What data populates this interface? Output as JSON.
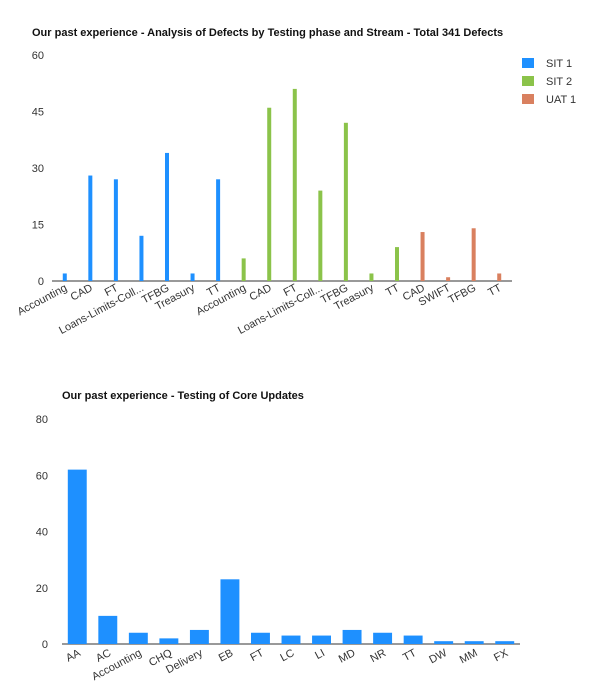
{
  "chart_data": [
    {
      "type": "bar",
      "title": "Our past experience - Analysis of Defects by Testing phase and Stream - Total 341 Defects",
      "xlabel": "",
      "ylabel": "",
      "ylim": [
        0,
        60
      ],
      "yticks": [
        "60",
        "45",
        "30",
        "15",
        "0"
      ],
      "grid": false,
      "legend_position": "top-right",
      "series_colors": {
        "SIT 1": "#1e90ff",
        "SIT 2": "#8bc34a",
        "UAT 1": "#d9805f"
      },
      "legend": [
        {
          "name": "SIT 1",
          "color": "#1e90ff"
        },
        {
          "name": "SIT 2",
          "color": "#8bc34a"
        },
        {
          "name": "UAT 1",
          "color": "#d9805f"
        }
      ],
      "categories": [
        "Accounting",
        "CAD",
        "FT",
        "Loans-Limits-Coll...",
        "TFBG",
        "Treasury",
        "TT",
        "Accounting",
        "CAD",
        "FT",
        "Loans-Limits-Coll...",
        "TFBG",
        "Treasury",
        "TT",
        "CAD",
        "SWIFT",
        "TFBG",
        "TT"
      ],
      "series_of_category": [
        "SIT 1",
        "SIT 1",
        "SIT 1",
        "SIT 1",
        "SIT 1",
        "SIT 1",
        "SIT 1",
        "SIT 2",
        "SIT 2",
        "SIT 2",
        "SIT 2",
        "SIT 2",
        "SIT 2",
        "SIT 2",
        "UAT 1",
        "UAT 1",
        "UAT 1",
        "UAT 1"
      ],
      "values": [
        2,
        28,
        27,
        12,
        34,
        2,
        27,
        6,
        46,
        51,
        24,
        42,
        2,
        9,
        13,
        1,
        14,
        2
      ]
    },
    {
      "type": "bar",
      "title": "Our past experience - Testing of Core Updates",
      "xlabel": "",
      "ylabel": "",
      "ylim": [
        0,
        80
      ],
      "yticks": [
        "80",
        "60",
        "40",
        "20",
        "0"
      ],
      "grid": false,
      "color": "#1e90ff",
      "categories": [
        "AA",
        "AC",
        "Accounting",
        "CHQ",
        "Delivery",
        "EB",
        "FT",
        "LC",
        "LI",
        "MD",
        "NR",
        "TT",
        "DW",
        "MM",
        "FX"
      ],
      "values": [
        62,
        10,
        4,
        2,
        5,
        23,
        4,
        3,
        3,
        5,
        4,
        3,
        1,
        1,
        1
      ]
    }
  ]
}
